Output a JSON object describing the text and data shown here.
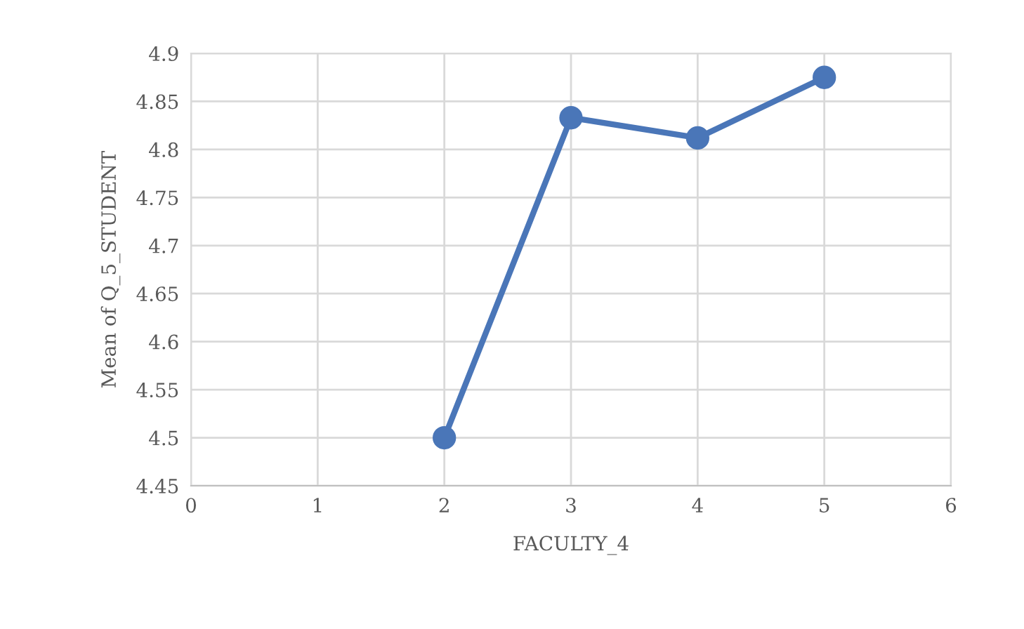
{
  "chart_data": {
    "type": "line",
    "xlabel": "FACULTY_4",
    "ylabel": "Mean of Q_5_STUDENT",
    "x": [
      2,
      3,
      4,
      5
    ],
    "series": [
      {
        "color": "#4a76b8",
        "values": [
          4.5,
          4.833,
          4.812,
          4.875
        ]
      }
    ],
    "xlim": [
      0,
      6
    ],
    "xticks": [
      0,
      1,
      2,
      3,
      4,
      5,
      6
    ],
    "ylim": [
      4.45,
      4.9
    ],
    "yticks": [
      4.45,
      4.5,
      4.55,
      4.6,
      4.65,
      4.7,
      4.75,
      4.8,
      4.85,
      4.9
    ],
    "grid": true,
    "marker": "circle",
    "line_style": "solid"
  }
}
